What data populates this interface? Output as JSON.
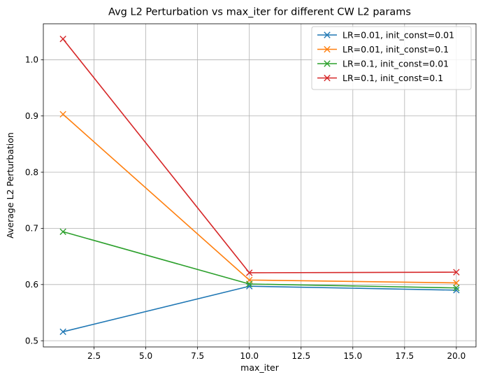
{
  "chart_data": {
    "type": "line",
    "title": "Avg L2 Perturbation vs max_iter for different CW L2 params",
    "xlabel": "max_iter",
    "ylabel": "Average L2 Perturbation",
    "x": [
      1,
      10,
      20
    ],
    "xlim": [
      0.05,
      20.95
    ],
    "ylim": [
      0.489,
      1.064
    ],
    "xticks": [
      2.5,
      5.0,
      7.5,
      10.0,
      12.5,
      15.0,
      17.5,
      20.0
    ],
    "xtick_labels": [
      "2.5",
      "5.0",
      "7.5",
      "10.0",
      "12.5",
      "15.0",
      "17.5",
      "20.0"
    ],
    "yticks": [
      0.5,
      0.6,
      0.7,
      0.8,
      0.9,
      1.0
    ],
    "ytick_labels": [
      "0.5",
      "0.6",
      "0.7",
      "0.8",
      "0.9",
      "1.0"
    ],
    "grid": true,
    "legend_position": "top-right",
    "marker": "x",
    "series": [
      {
        "name": "LR=0.01, init_const=0.01",
        "color": "#1f77b4",
        "values": [
          0.516,
          0.597,
          0.59
        ]
      },
      {
        "name": "LR=0.01, init_const=0.1",
        "color": "#ff7f0e",
        "values": [
          0.903,
          0.608,
          0.603
        ]
      },
      {
        "name": "LR=0.1, init_const=0.01",
        "color": "#2ca02c",
        "values": [
          0.694,
          0.601,
          0.594
        ]
      },
      {
        "name": "LR=0.1, init_const=0.1",
        "color": "#d62728",
        "values": [
          1.037,
          0.621,
          0.622
        ]
      }
    ]
  }
}
